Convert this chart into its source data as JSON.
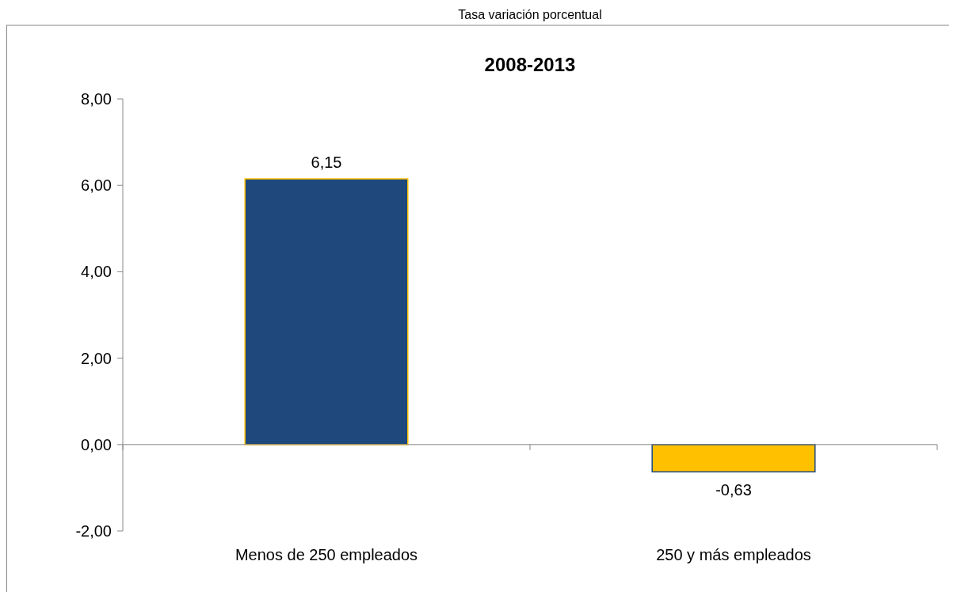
{
  "chart_data": {
    "type": "bar",
    "title": "Tasa variación porcentual",
    "subtitle": "2008-2013",
    "categories": [
      "Menos de 250 empleados",
      "250 y más empleados"
    ],
    "values": [
      6.15,
      -0.63
    ],
    "value_labels": [
      "6,15",
      "-0,63"
    ],
    "colors": [
      "#1f497d",
      "#ffc000"
    ],
    "ylim": [
      -2,
      8
    ],
    "yticks": [
      {
        "value": -2,
        "label": "-2,00"
      },
      {
        "value": 0,
        "label": "0,00"
      },
      {
        "value": 2,
        "label": "2,00"
      },
      {
        "value": 4,
        "label": "4,00"
      },
      {
        "value": 6,
        "label": "6,00"
      },
      {
        "value": 8,
        "label": "8,00"
      }
    ]
  }
}
